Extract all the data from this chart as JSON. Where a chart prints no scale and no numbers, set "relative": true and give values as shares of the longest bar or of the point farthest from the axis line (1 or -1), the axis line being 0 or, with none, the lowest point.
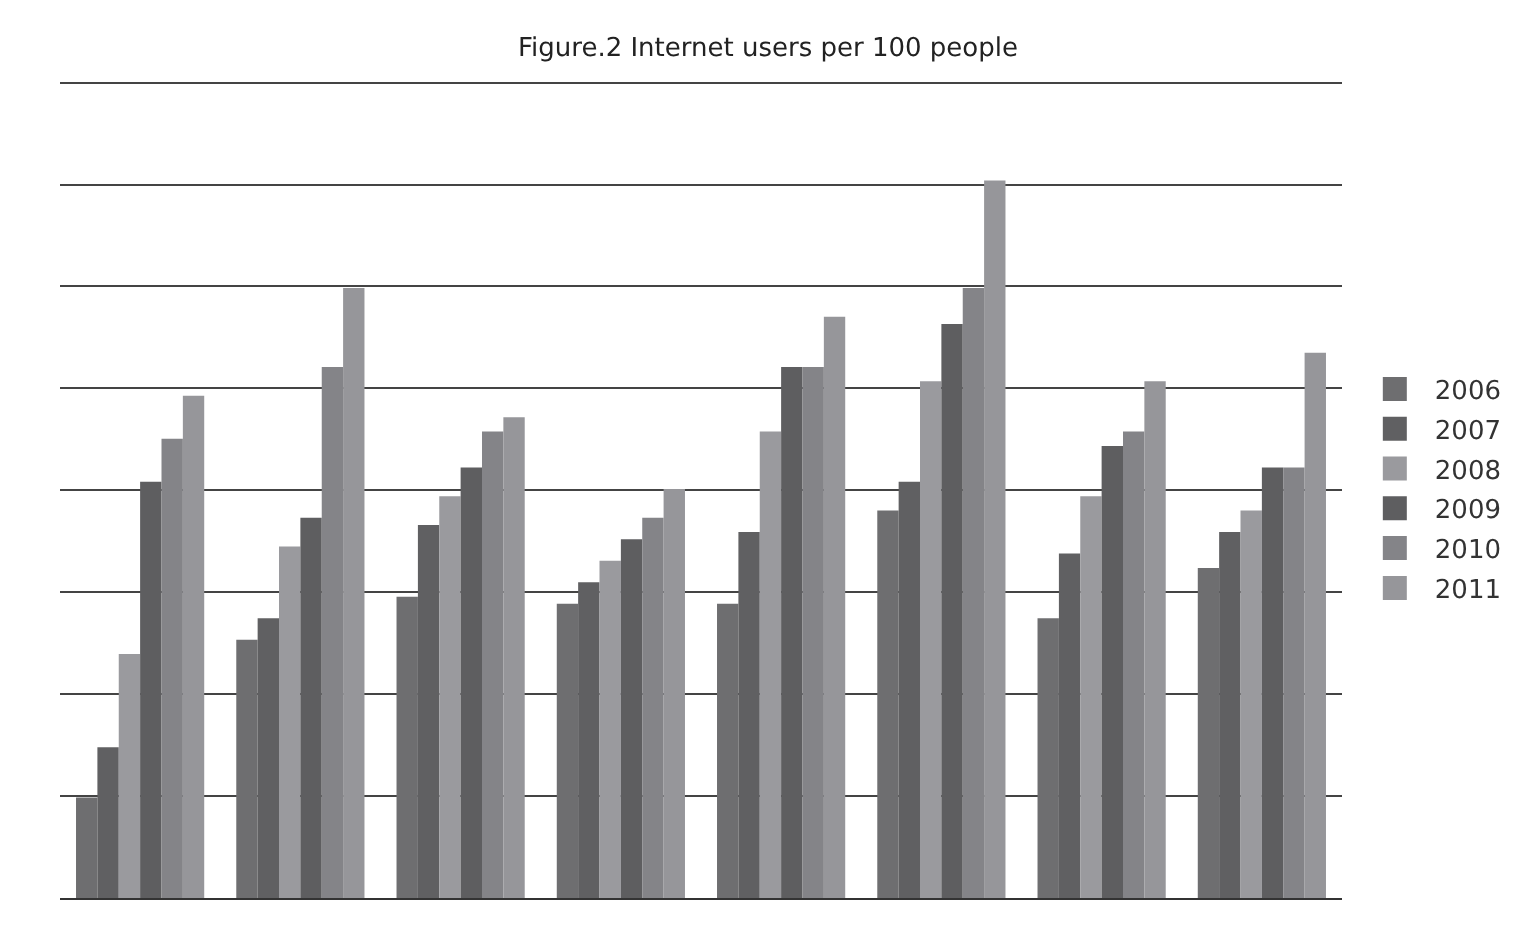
{
  "chart_data": {
    "type": "bar",
    "title": "Figure.2 Internet users per 100 people",
    "relative": true,
    "grid": "y",
    "legend": "right",
    "categories": [
      null,
      null,
      null,
      null,
      null,
      null,
      null,
      null
    ],
    "series": [
      {
        "name": "2006",
        "color": "#6e6e70",
        "values": [
          0.14,
          0.36,
          0.42,
          0.41,
          0.41,
          0.54,
          0.39,
          0.46
        ]
      },
      {
        "name": "2007",
        "color": "#606062",
        "values": [
          0.21,
          0.39,
          0.52,
          0.44,
          0.51,
          0.58,
          0.48,
          0.51
        ]
      },
      {
        "name": "2008",
        "color": "#9a9a9e",
        "values": [
          0.34,
          0.49,
          0.56,
          0.47,
          0.65,
          0.72,
          0.56,
          0.54
        ]
      },
      {
        "name": "2009",
        "color": "#5e5e60",
        "values": [
          0.58,
          0.53,
          0.6,
          0.5,
          0.74,
          0.8,
          0.63,
          0.6
        ]
      },
      {
        "name": "2010",
        "color": "#848488",
        "values": [
          0.64,
          0.74,
          0.65,
          0.53,
          0.74,
          0.85,
          0.65,
          0.6
        ]
      },
      {
        "name": "2011",
        "color": "#96969a",
        "values": [
          0.7,
          0.85,
          0.67,
          0.57,
          0.81,
          1,
          0.72,
          0.76
        ]
      }
    ]
  }
}
